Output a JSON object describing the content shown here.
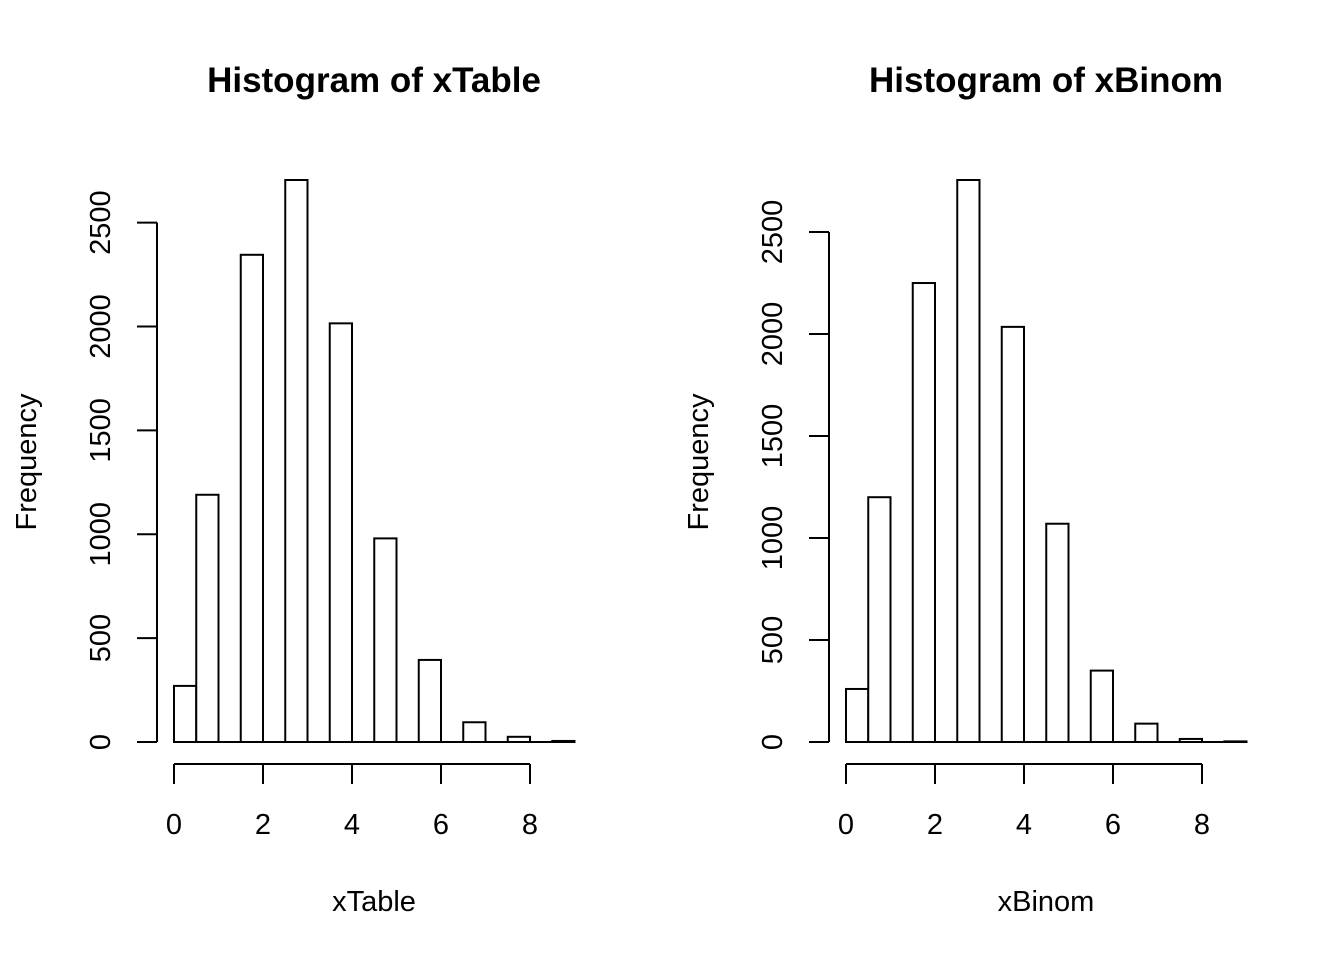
{
  "chart_data": [
    {
      "type": "bar",
      "title": "Histogram of xTable",
      "xlabel": "xTable",
      "ylabel": "Frequency",
      "bins": [
        [
          0,
          0.5
        ],
        [
          0.5,
          1
        ],
        [
          1.5,
          2
        ],
        [
          2.5,
          3
        ],
        [
          3.5,
          4
        ],
        [
          4.5,
          5
        ],
        [
          5.5,
          6
        ],
        [
          6.5,
          7
        ],
        [
          7.5,
          8
        ],
        [
          8.5,
          9
        ]
      ],
      "values": [
        270,
        1190,
        2345,
        2705,
        2015,
        980,
        395,
        95,
        25,
        5
      ],
      "xlim": [
        0,
        9
      ],
      "ylim": [
        0,
        2705
      ],
      "x_ticks": [
        0,
        2,
        4,
        6,
        8
      ],
      "y_ticks": [
        0,
        500,
        1000,
        1500,
        2000,
        2500
      ],
      "x_tick_labels": [
        "0",
        "2",
        "4",
        "6",
        "8"
      ],
      "y_tick_labels": [
        "0",
        "500",
        "1000",
        "1500",
        "2000",
        "2500"
      ]
    },
    {
      "type": "bar",
      "title": "Histogram of xBinom",
      "xlabel": "xBinom",
      "ylabel": "Frequency",
      "bins": [
        [
          0,
          0.5
        ],
        [
          0.5,
          1
        ],
        [
          1.5,
          2
        ],
        [
          2.5,
          3
        ],
        [
          3.5,
          4
        ],
        [
          4.5,
          5
        ],
        [
          5.5,
          6
        ],
        [
          6.5,
          7
        ],
        [
          7.5,
          8
        ],
        [
          8.5,
          9
        ]
      ],
      "values": [
        260,
        1200,
        2250,
        2755,
        2035,
        1070,
        350,
        90,
        15,
        3
      ],
      "xlim": [
        0,
        9
      ],
      "ylim": [
        0,
        2755
      ],
      "x_ticks": [
        0,
        2,
        4,
        6,
        8
      ],
      "y_ticks": [
        0,
        500,
        1000,
        1500,
        2000,
        2500
      ],
      "x_tick_labels": [
        "0",
        "2",
        "4",
        "6",
        "8"
      ],
      "y_tick_labels": [
        "0",
        "500",
        "1000",
        "1500",
        "2000",
        "2500"
      ]
    }
  ]
}
